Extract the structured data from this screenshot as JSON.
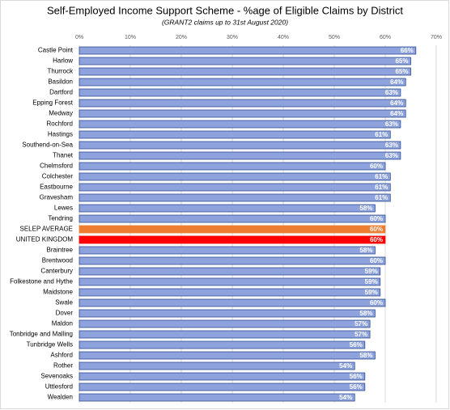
{
  "chart_data": {
    "type": "hbar",
    "title": "Self-Employed Income Support Scheme - %age of Eligible Claims by District",
    "subtitle": "(GRANT2 claims up to 31st August 2020)",
    "categories": [
      "Castle Point",
      "Harlow",
      "Thurrock",
      "Basildon",
      "Dartford",
      "Epping Forest",
      "Medway",
      "Rochford",
      "Hastings",
      "Southend-on-Sea",
      "Thanet",
      "Chelmsford",
      "Colchester",
      "Eastbourne",
      "Gravesham",
      "Lewes",
      "Tendring",
      "SELEP AVERAGE",
      "UNITED KINGDOM",
      "Braintree",
      "Brentwood",
      "Canterbury",
      "Folkestone and Hythe",
      "Maidstone",
      "Swale",
      "Dover",
      "Maldon",
      "Tonbridge and Malling",
      "Tunbridge Wells",
      "Ashford",
      "Rother",
      "Sevenoaks",
      "Uttlesford",
      "Wealden"
    ],
    "values": [
      66,
      65,
      65,
      64,
      63,
      64,
      64,
      63,
      61,
      63,
      63,
      60,
      61,
      61,
      61,
      58,
      60,
      60,
      60,
      58,
      60,
      59,
      59,
      59,
      60,
      58,
      57,
      57,
      56,
      58,
      54,
      56,
      56,
      54
    ],
    "value_labels": [
      "66%",
      "65%",
      "65%",
      "64%",
      "63%",
      "64%",
      "64%",
      "63%",
      "61%",
      "63%",
      "63%",
      "60%",
      "61%",
      "61%",
      "61%",
      "58%",
      "60%",
      "60%",
      "60%",
      "58%",
      "60%",
      "59%",
      "59%",
      "59%",
      "60%",
      "58%",
      "57%",
      "57%",
      "56%",
      "58%",
      "54%",
      "56%",
      "56%",
      "54%"
    ],
    "colors": [
      "#8ea3dd",
      "#8ea3dd",
      "#8ea3dd",
      "#8ea3dd",
      "#8ea3dd",
      "#8ea3dd",
      "#8ea3dd",
      "#8ea3dd",
      "#8ea3dd",
      "#8ea3dd",
      "#8ea3dd",
      "#8ea3dd",
      "#8ea3dd",
      "#8ea3dd",
      "#8ea3dd",
      "#8ea3dd",
      "#8ea3dd",
      "#ed7d31",
      "#ff0000",
      "#8ea3dd",
      "#8ea3dd",
      "#8ea3dd",
      "#8ea3dd",
      "#8ea3dd",
      "#8ea3dd",
      "#8ea3dd",
      "#8ea3dd",
      "#8ea3dd",
      "#8ea3dd",
      "#8ea3dd",
      "#8ea3dd",
      "#8ea3dd",
      "#8ea3dd",
      "#8ea3dd"
    ],
    "xlim": [
      0,
      70
    ],
    "xticks": [
      {
        "value": 0,
        "label": "0%"
      },
      {
        "value": 10,
        "label": "10%"
      },
      {
        "value": 20,
        "label": "20%"
      },
      {
        "value": 30,
        "label": "30%"
      },
      {
        "value": 40,
        "label": "40%"
      },
      {
        "value": 50,
        "label": "50%"
      },
      {
        "value": 60,
        "label": "60%"
      },
      {
        "value": 70,
        "label": "70%"
      }
    ],
    "grid": true
  }
}
